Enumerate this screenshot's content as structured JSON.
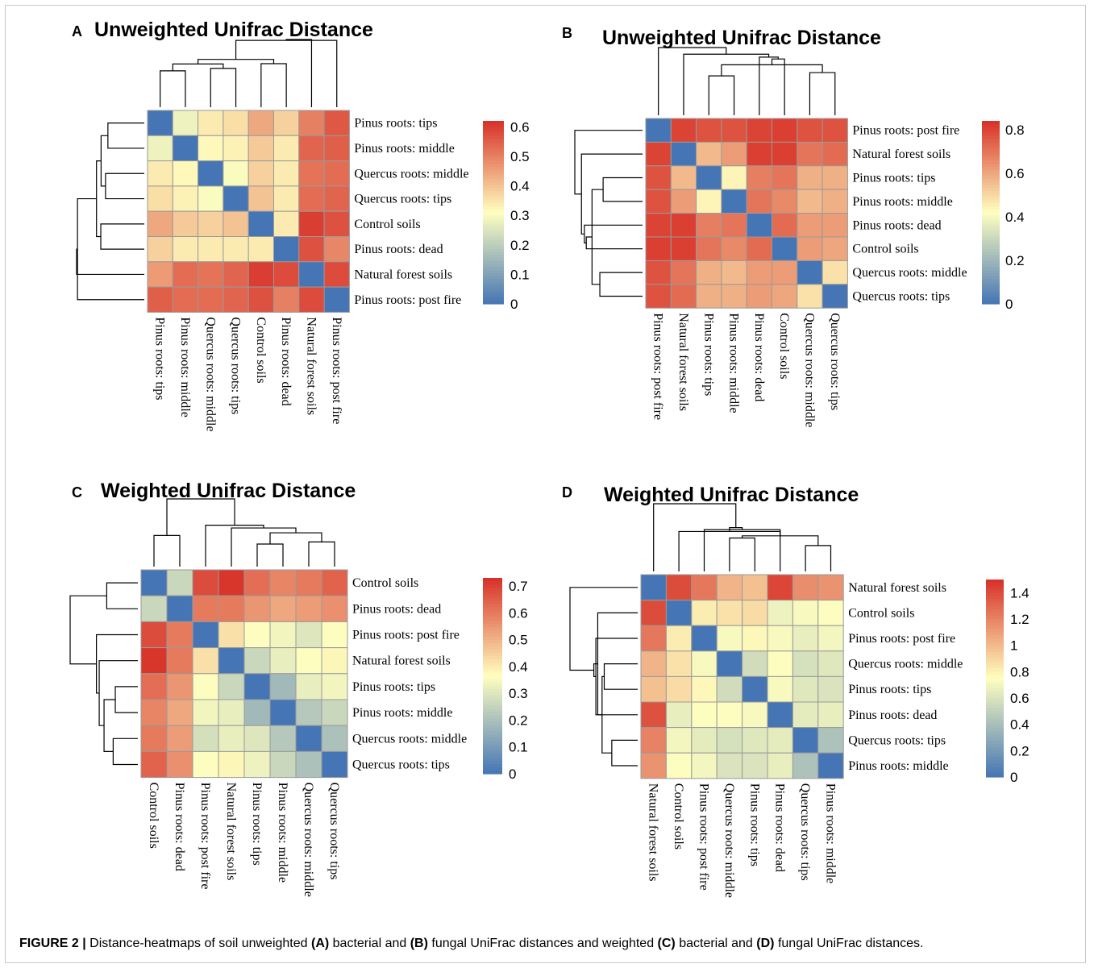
{
  "caption": {
    "figure_label": "FIGURE 2 |",
    "segments": [
      {
        "text": " Distance-heatmaps of soil unweighted ",
        "bold": false
      },
      {
        "text": "(A)",
        "bold": true
      },
      {
        "text": " bacterial and ",
        "bold": false
      },
      {
        "text": "(B)",
        "bold": true
      },
      {
        "text": " fungal UniFrac distances and weighted ",
        "bold": false
      },
      {
        "text": "(C)",
        "bold": true
      },
      {
        "text": " bacterial and ",
        "bold": false
      },
      {
        "text": "(D)",
        "bold": true
      },
      {
        "text": " fungal UniFrac distances.",
        "bold": false
      }
    ]
  },
  "colors": {
    "low": "#4575b4",
    "mid": "#ffffbf",
    "high": "#d73027",
    "cell_border": "#9a9a9a"
  },
  "chart_data": [
    {
      "panel": "A",
      "type": "heatmap",
      "title": "Unweighted Unifrac Distance",
      "labels": [
        "Pinus roots: tips",
        "Pinus roots: middle",
        "Quercus roots: middle",
        "Quercus roots: tips",
        "Control soils",
        "Pinus roots: dead",
        "Natural forest soils",
        "Pinus roots: post fire"
      ],
      "colorbar": {
        "min": 0,
        "max": 0.62,
        "ticks": [
          "0.6",
          "0.5",
          "0.4",
          "0.3",
          "0.2",
          "0.1",
          "0"
        ],
        "tick_values": [
          0.6,
          0.5,
          0.4,
          0.3,
          0.2,
          0.1,
          0
        ]
      },
      "matrix": [
        [
          0,
          0.28,
          0.34,
          0.36,
          0.44,
          0.38,
          0.5,
          0.56
        ],
        [
          0.28,
          0,
          0.32,
          0.33,
          0.39,
          0.34,
          0.54,
          0.55
        ],
        [
          0.34,
          0.32,
          0,
          0.3,
          0.38,
          0.34,
          0.52,
          0.53
        ],
        [
          0.36,
          0.33,
          0.3,
          0,
          0.4,
          0.34,
          0.53,
          0.54
        ],
        [
          0.44,
          0.39,
          0.38,
          0.4,
          0,
          0.34,
          0.6,
          0.57
        ],
        [
          0.38,
          0.34,
          0.34,
          0.34,
          0.34,
          0,
          0.57,
          0.49
        ],
        [
          0.46,
          0.53,
          0.52,
          0.54,
          0.6,
          0.58,
          0,
          0.58
        ],
        [
          0.55,
          0.53,
          0.53,
          0.54,
          0.57,
          0.5,
          0.58,
          0
        ]
      ]
    },
    {
      "panel": "B",
      "type": "heatmap",
      "title": "Unweighted Unifrac Distance",
      "labels": [
        "Pinus roots: post fire",
        "Natural forest soils",
        "Pinus roots: tips",
        "Pinus roots: middle",
        "Pinus roots: dead",
        "Control soils",
        "Quercus roots: middle",
        "Quercus roots: tips"
      ],
      "colorbar": {
        "min": 0,
        "max": 0.84,
        "ticks": [
          "0.8",
          "0.6",
          "0.4",
          "0.2",
          "0"
        ],
        "tick_values": [
          0.8,
          0.6,
          0.4,
          0.2,
          0
        ]
      },
      "matrix": [
        [
          0,
          0.8,
          0.77,
          0.77,
          0.8,
          0.81,
          0.77,
          0.77
        ],
        [
          0.8,
          0,
          0.56,
          0.62,
          0.81,
          0.81,
          0.7,
          0.72
        ],
        [
          0.77,
          0.56,
          0,
          0.44,
          0.68,
          0.7,
          0.58,
          0.58
        ],
        [
          0.77,
          0.62,
          0.44,
          0,
          0.7,
          0.66,
          0.56,
          0.58
        ],
        [
          0.8,
          0.81,
          0.68,
          0.7,
          0,
          0.72,
          0.62,
          0.62
        ],
        [
          0.81,
          0.81,
          0.7,
          0.66,
          0.72,
          0,
          0.62,
          0.6
        ],
        [
          0.77,
          0.7,
          0.58,
          0.56,
          0.62,
          0.62,
          0,
          0.48
        ],
        [
          0.77,
          0.72,
          0.58,
          0.58,
          0.62,
          0.6,
          0.48,
          0
        ]
      ]
    },
    {
      "panel": "C",
      "type": "heatmap",
      "title": "Weighted Unifrac Distance",
      "labels": [
        "Control soils",
        "Pinus roots: dead",
        "Pinus roots: post fire",
        "Natural forest soils",
        "Pinus roots: tips",
        "Pinus roots: middle",
        "Quercus roots: middle",
        "Quercus roots: tips"
      ],
      "colorbar": {
        "min": 0,
        "max": 0.73,
        "ticks": [
          "0.7",
          "0.6",
          "0.5",
          "0.4",
          "0.3",
          "0.2",
          "0.1",
          "0"
        ],
        "tick_values": [
          0.7,
          0.6,
          0.5,
          0.4,
          0.3,
          0.2,
          0.1,
          0
        ]
      },
      "matrix": [
        [
          0,
          0.26,
          0.68,
          0.72,
          0.62,
          0.58,
          0.6,
          0.64
        ],
        [
          0.26,
          0,
          0.6,
          0.6,
          0.55,
          0.52,
          0.54,
          0.56
        ],
        [
          0.68,
          0.6,
          0,
          0.42,
          0.36,
          0.34,
          0.3,
          0.36
        ],
        [
          0.72,
          0.6,
          0.42,
          0,
          0.26,
          0.32,
          0.36,
          0.38
        ],
        [
          0.62,
          0.55,
          0.36,
          0.26,
          0,
          0.18,
          0.32,
          0.34
        ],
        [
          0.58,
          0.52,
          0.34,
          0.32,
          0.18,
          0,
          0.22,
          0.26
        ],
        [
          0.6,
          0.54,
          0.28,
          0.32,
          0.3,
          0.22,
          0,
          0.2
        ],
        [
          0.64,
          0.56,
          0.36,
          0.38,
          0.33,
          0.26,
          0.2,
          0
        ]
      ]
    },
    {
      "panel": "D",
      "type": "heatmap",
      "title": "Weighted Unifrac Distance",
      "labels": [
        "Natural forest soils",
        "Control soils",
        "Pinus roots: post fire",
        "Quercus roots: middle",
        "Pinus roots: tips",
        "Pinus roots: dead",
        "Quercus roots: tips",
        "Pinus roots: middle"
      ],
      "colorbar": {
        "min": 0,
        "max": 1.5,
        "ticks": [
          "1.4",
          "1.2",
          "1",
          "0.8",
          "0.6",
          "0.4",
          "0.2",
          "0"
        ],
        "tick_values": [
          1.4,
          1.2,
          1.0,
          0.8,
          0.6,
          0.4,
          0.2,
          0
        ]
      },
      "matrix": [
        [
          0,
          1.4,
          1.24,
          1.02,
          0.98,
          1.42,
          1.16,
          1.14
        ],
        [
          1.4,
          0,
          0.82,
          0.86,
          0.88,
          0.68,
          0.72,
          0.74
        ],
        [
          1.24,
          0.82,
          0,
          0.72,
          0.78,
          0.72,
          0.66,
          0.7
        ],
        [
          1.02,
          0.86,
          0.72,
          0,
          0.56,
          0.74,
          0.58,
          0.62
        ],
        [
          0.98,
          0.88,
          0.78,
          0.56,
          0,
          0.72,
          0.62,
          0.6
        ],
        [
          1.38,
          0.66,
          0.74,
          0.74,
          0.72,
          0,
          0.64,
          0.66
        ],
        [
          1.2,
          0.7,
          0.64,
          0.58,
          0.62,
          0.64,
          0,
          0.42
        ],
        [
          1.14,
          0.74,
          0.7,
          0.6,
          0.6,
          0.66,
          0.42,
          0
        ]
      ]
    }
  ]
}
